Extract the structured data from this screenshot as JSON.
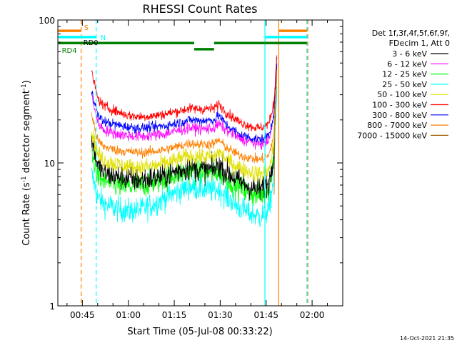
{
  "chart_data": {
    "type": "line",
    "title": "RHESSI Count Rates",
    "xlabel": "Start Time (05-Jul-08 00:33:22)",
    "ylabel_main": "Count Rate (s",
    "ylabel_sup1": "-1",
    "ylabel_mid": " detector segment",
    "ylabel_sup2": "-1",
    "ylabel_end": ")",
    "x_unit": "minutes since 00:00 UT, 05-Jul-08",
    "xlim": [
      37.0,
      130.0
    ],
    "ylim": [
      1,
      100
    ],
    "y_scale": "log",
    "x_ticks": [
      {
        "value": 45,
        "label": "00:45"
      },
      {
        "value": 60,
        "label": "01:00"
      },
      {
        "value": 75,
        "label": "01:15"
      },
      {
        "value": 90,
        "label": "01:30"
      },
      {
        "value": 105,
        "label": "01:45"
      },
      {
        "value": 120,
        "label": "02:00"
      }
    ],
    "y_ticks": [
      {
        "value": 1,
        "label": "1"
      },
      {
        "value": 10,
        "label": "10"
      },
      {
        "value": 100,
        "label": "100"
      }
    ],
    "legend": {
      "header1": "Det 1f,3f,4f,5f,6f,9f,",
      "header2": "FDecim 1, Att 0",
      "placement": "right"
    },
    "series": [
      {
        "name": "3 - 6 keV",
        "color": "#000000",
        "noise": 0.2,
        "x": [
          48,
          52,
          56,
          60,
          64,
          68,
          72,
          76,
          80,
          84,
          88,
          89.5,
          92,
          96,
          100,
          103,
          106,
          107.5,
          108.5
        ],
        "y": [
          11,
          8.5,
          8.0,
          7.8,
          7.6,
          7.8,
          8.1,
          8.8,
          9.3,
          9.0,
          9.0,
          9.8,
          8.6,
          7.5,
          6.7,
          6.5,
          7.3,
          12,
          50
        ]
      },
      {
        "name": "6 - 12 keV",
        "color": "#ff00ff",
        "noise": 0.09,
        "x": [
          48,
          52,
          56,
          60,
          64,
          68,
          72,
          76,
          80,
          84,
          88,
          89.5,
          92,
          96,
          100,
          103,
          106,
          107.5,
          108.5
        ],
        "y": [
          22,
          17,
          16,
          15.5,
          15.3,
          15.6,
          16,
          16.8,
          17.6,
          17.3,
          17.5,
          18.8,
          17,
          15,
          14,
          13.5,
          14.5,
          22,
          55
        ]
      },
      {
        "name": "12 - 25 keV",
        "color": "#00ff00",
        "noise": 0.2,
        "x": [
          48,
          52,
          56,
          60,
          64,
          68,
          72,
          76,
          80,
          84,
          88,
          89.5,
          92,
          96,
          100,
          103,
          106,
          107.5,
          108.5
        ],
        "y": [
          8.5,
          7.5,
          7.0,
          6.8,
          6.9,
          7.3,
          7.8,
          8.4,
          8.8,
          8.6,
          8.5,
          8.8,
          7.8,
          6.8,
          6.1,
          5.9,
          6.6,
          11,
          45
        ]
      },
      {
        "name": "25 - 50 keV",
        "color": "#00ffff",
        "noise": 0.2,
        "x": [
          48,
          52,
          56,
          60,
          64,
          68,
          72,
          76,
          80,
          84,
          88,
          89.5,
          92,
          96,
          100,
          103,
          106,
          107.5,
          108.5
        ],
        "y": [
          6.2,
          5.2,
          4.8,
          4.6,
          4.7,
          5.1,
          5.7,
          6.3,
          6.8,
          6.6,
          6.4,
          6.6,
          5.8,
          4.9,
          4.4,
          4.2,
          4.7,
          8,
          35
        ]
      },
      {
        "name": "50 - 100 keV",
        "color": "#e0e000",
        "noise": 0.14,
        "x": [
          48,
          52,
          56,
          60,
          64,
          68,
          72,
          76,
          80,
          84,
          88,
          89.5,
          92,
          96,
          100,
          103,
          106,
          107.5,
          108.5
        ],
        "y": [
          12.5,
          10.5,
          9.8,
          9.4,
          9.3,
          9.5,
          9.9,
          10.5,
          11.2,
          11,
          11,
          12,
          10.6,
          9.3,
          8.6,
          8.3,
          9,
          13,
          42
        ]
      },
      {
        "name": "100 - 300 keV",
        "color": "#ff0000",
        "noise": 0.08,
        "x": [
          48,
          52,
          56,
          60,
          64,
          68,
          72,
          76,
          80,
          84,
          88,
          89.5,
          92,
          96,
          100,
          103,
          106,
          107.5,
          108.5
        ],
        "y": [
          32,
          25,
          23,
          21.5,
          21,
          21.3,
          22,
          23,
          24,
          23.8,
          24,
          26,
          22.5,
          19.5,
          18,
          17.5,
          19,
          26,
          58
        ]
      },
      {
        "name": "300 - 800 keV",
        "color": "#0000ff",
        "noise": 0.08,
        "x": [
          48,
          52,
          56,
          60,
          64,
          68,
          72,
          76,
          80,
          84,
          88,
          89.5,
          92,
          96,
          100,
          103,
          106,
          107.5,
          108.5
        ],
        "y": [
          24,
          19.5,
          18.5,
          17.8,
          17.5,
          17.8,
          18.2,
          19,
          20,
          19.8,
          20,
          21.5,
          18.5,
          16,
          15,
          14.5,
          15.8,
          22,
          50
        ]
      },
      {
        "name": "800 - 7000 keV",
        "color": "#ff8000",
        "noise": 0.08,
        "x": [
          48,
          52,
          56,
          60,
          64,
          68,
          72,
          76,
          80,
          84,
          88,
          89.5,
          92,
          96,
          100,
          103,
          106,
          107.5,
          108.5
        ],
        "y": [
          16,
          13,
          12.3,
          12,
          11.8,
          12,
          12.4,
          13,
          13.7,
          13.5,
          13.6,
          14.5,
          12.8,
          11.4,
          10.8,
          10.5,
          11.3,
          16,
          46
        ]
      },
      {
        "name": "7000 - 15000 keV",
        "color": "#a06000",
        "noise": 0.0,
        "x": [
          107.6,
          107.9
        ],
        "y": [
          6,
          25
        ]
      }
    ],
    "markers": [
      {
        "type": "vline",
        "x": 44.6,
        "color": "#ff8000",
        "style": "dash"
      },
      {
        "type": "vline",
        "x": 49.5,
        "color": "#00ffff",
        "style": "dash"
      },
      {
        "type": "vline",
        "x": 104.6,
        "color": "#00ffff",
        "style": "solid"
      },
      {
        "type": "vline",
        "x": 109.1,
        "color": "#ff8000",
        "style": "solid"
      },
      {
        "type": "vline",
        "x": 118.3,
        "color": "#00ffff",
        "style": "dash"
      },
      {
        "type": "vline",
        "x": 118.6,
        "color": "#ff8000",
        "style": "dash"
      }
    ],
    "flag_bars": [
      {
        "label": "S",
        "color": "#ff8000",
        "y": 84,
        "segments": [
          [
            37.0,
            44.6
          ],
          [
            109.1,
            118.3
          ]
        ]
      },
      {
        "label": "N",
        "color": "#00ffff",
        "y": 76,
        "segments": [
          [
            37.0,
            49.5
          ],
          [
            104.6,
            118.3
          ]
        ]
      },
      {
        "label": "RD0",
        "color": "#008000",
        "y": 69,
        "segments": [
          [
            37.0,
            81.5
          ],
          [
            88.0,
            118.3
          ]
        ]
      },
      {
        "label": "RD4",
        "color": "#008000",
        "y": 62.5,
        "segments": [
          [
            81.5,
            88.0
          ]
        ]
      }
    ]
  },
  "footer": {
    "timestamp": "14-Oct-2021 21:35"
  }
}
